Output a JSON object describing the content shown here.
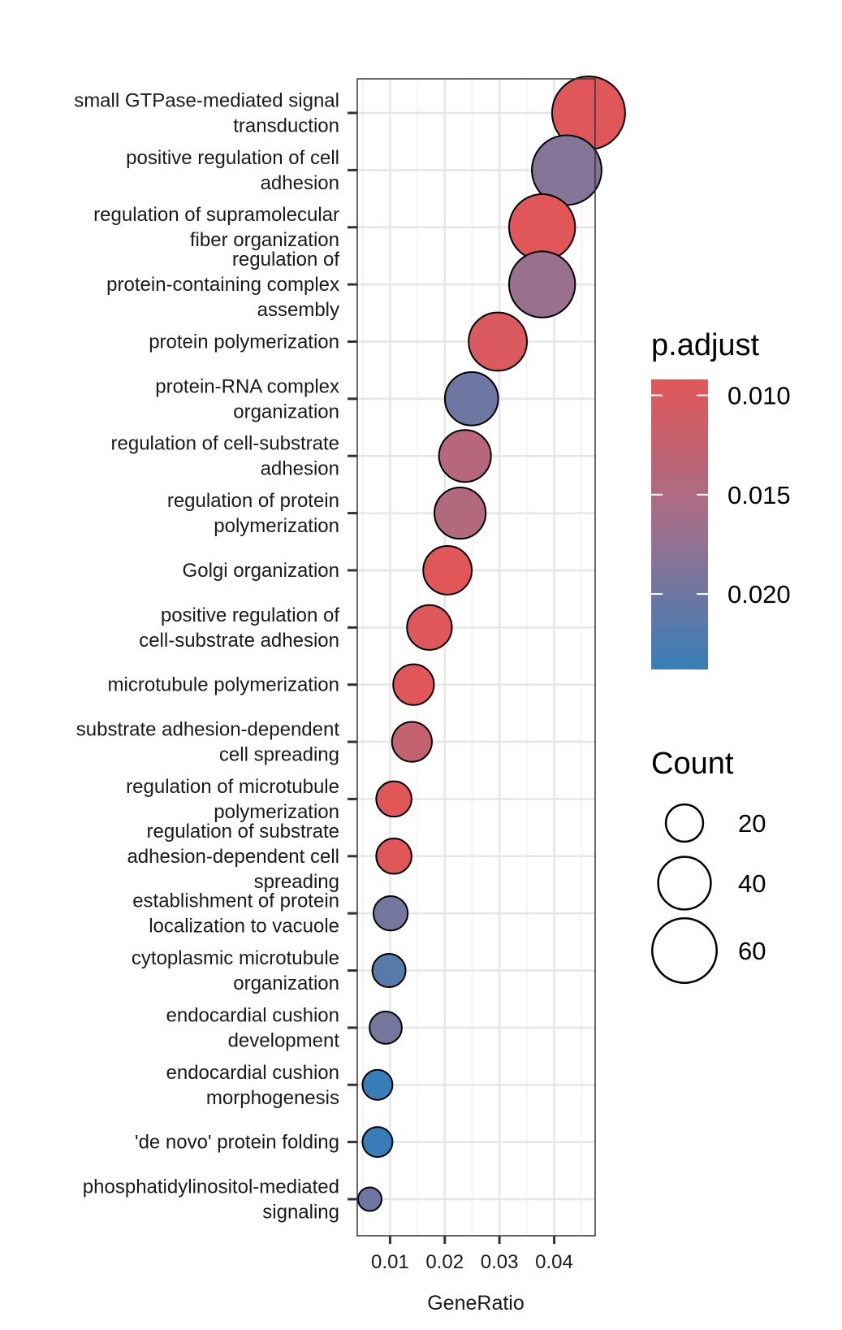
{
  "chart_data": {
    "type": "scatter",
    "xlabel": "GeneRatio",
    "xlim": [
      0.004,
      0.0475
    ],
    "xticks": [
      0.01,
      0.02,
      0.03,
      0.04
    ],
    "xtick_labels": [
      "0.01",
      "0.02",
      "0.03",
      "0.04"
    ],
    "grid": true,
    "legend_position": "right",
    "categories": [
      [
        "small GTPase-mediated signal",
        "transduction"
      ],
      [
        "positive regulation of cell",
        "adhesion"
      ],
      [
        "regulation of supramolecular",
        "fiber organization"
      ],
      [
        "regulation of",
        "protein-containing complex",
        "assembly"
      ],
      [
        "protein polymerization"
      ],
      [
        "protein-RNA complex",
        "organization"
      ],
      [
        "regulation of cell-substrate",
        "adhesion"
      ],
      [
        "regulation of protein",
        "polymerization"
      ],
      [
        "Golgi organization"
      ],
      [
        "positive regulation of",
        "cell-substrate adhesion"
      ],
      [
        "microtubule polymerization"
      ],
      [
        "substrate adhesion-dependent",
        "cell spreading"
      ],
      [
        "regulation of microtubule",
        "polymerization"
      ],
      [
        "regulation of substrate",
        "adhesion-dependent cell",
        "spreading"
      ],
      [
        "establishment of protein",
        "localization to vacuole"
      ],
      [
        "cytoplasmic microtubule",
        "organization"
      ],
      [
        "endocardial cushion",
        "development"
      ],
      [
        "endocardial cushion",
        "morphogenesis"
      ],
      [
        "'de novo' protein folding"
      ],
      [
        "phosphatidylinositol-mediated",
        "signaling"
      ]
    ],
    "gene_ratio": [
      0.0463,
      0.0423,
      0.0378,
      0.0378,
      0.0297,
      0.0249,
      0.0237,
      0.0228,
      0.0205,
      0.0172,
      0.0143,
      0.014,
      0.0107,
      0.0107,
      0.0101,
      0.0098,
      0.0092,
      0.0077,
      0.0077,
      0.0063
    ],
    "count": [
      77,
      70,
      63,
      63,
      49,
      41,
      39,
      38,
      34,
      29,
      24,
      23,
      18,
      18,
      17,
      16,
      15,
      13,
      13,
      8
    ],
    "p_adjust": [
      0.0092,
      0.0185,
      0.0092,
      0.017,
      0.01,
      0.02,
      0.014,
      0.0145,
      0.0092,
      0.0095,
      0.0092,
      0.0125,
      0.0092,
      0.0092,
      0.0195,
      0.0215,
      0.0195,
      0.0238,
      0.0238,
      0.02
    ],
    "color_legend": {
      "title": "p.adjust",
      "range": [
        0.0092,
        0.0238
      ],
      "ticks": [
        0.01,
        0.015,
        0.02
      ],
      "tick_labels": [
        "0.010",
        "0.015",
        "0.020"
      ],
      "low_color": "#E15759",
      "high_color": "#377EB8"
    },
    "size_legend": {
      "title": "Count",
      "values": [
        20,
        40,
        60
      ],
      "labels": [
        "20",
        "40",
        "60"
      ]
    }
  }
}
